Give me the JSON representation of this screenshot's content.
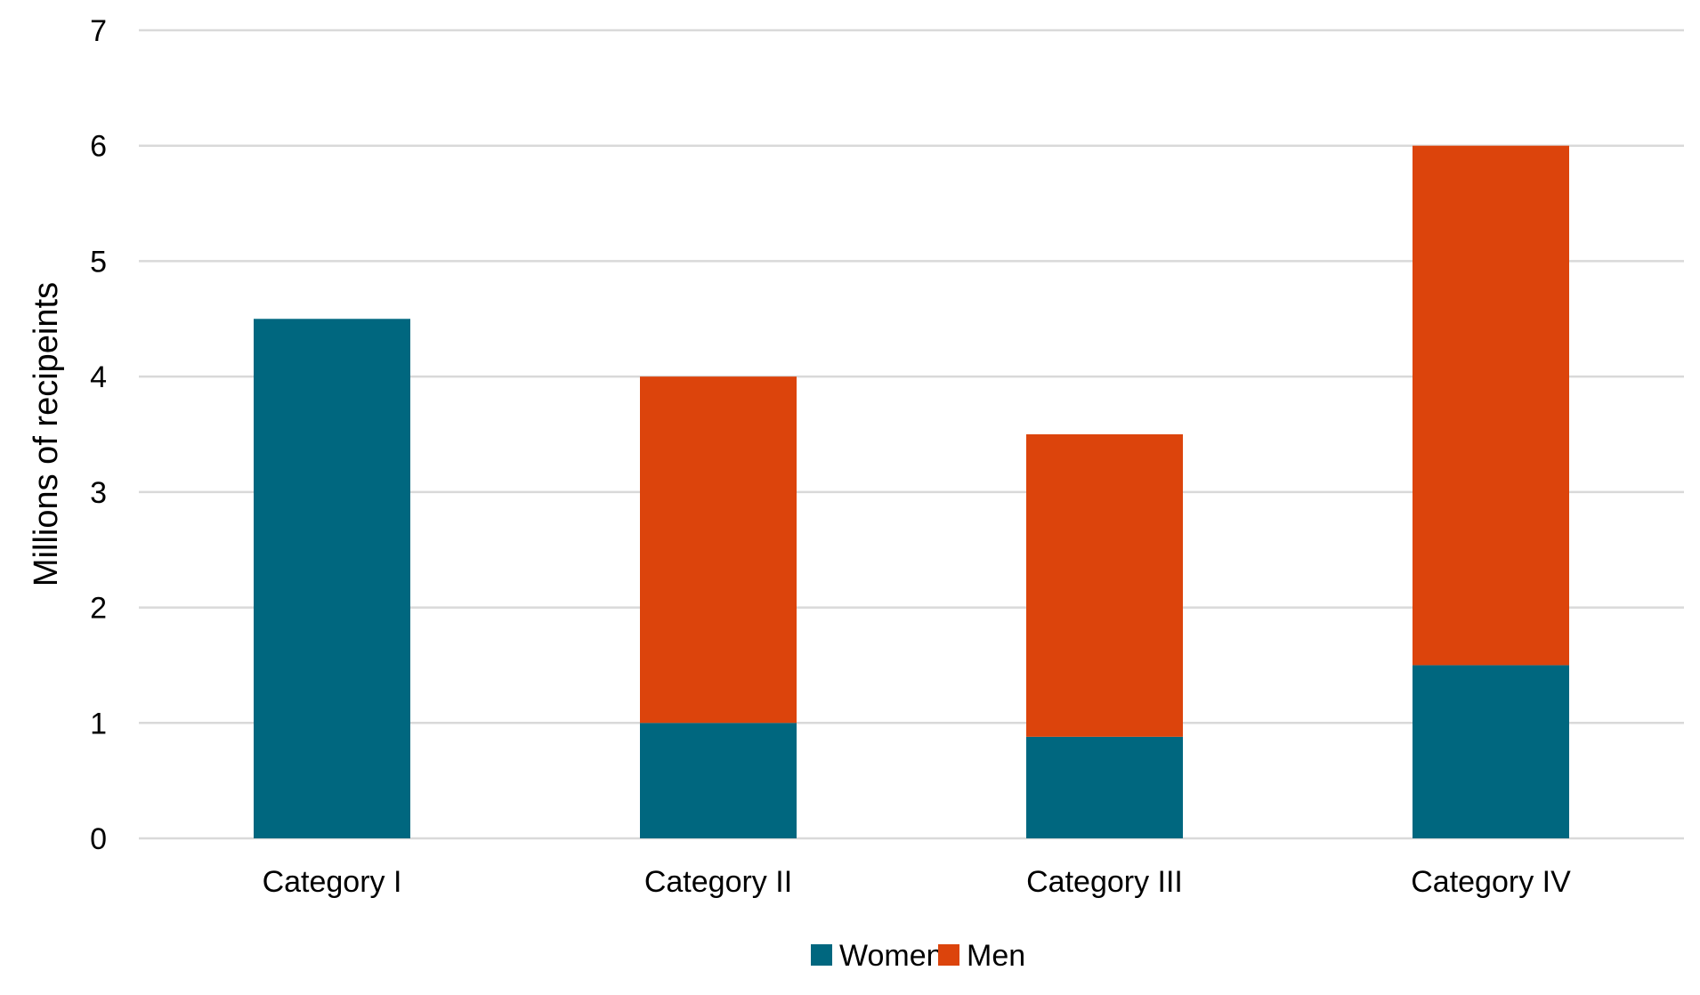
{
  "chart_data": {
    "type": "bar",
    "stacked": true,
    "categories": [
      "Category I",
      "Category II",
      "Category III",
      "Category IV"
    ],
    "series": [
      {
        "name": "Women",
        "color": "#00677f",
        "values": [
          4.5,
          1.0,
          0.88,
          1.5
        ]
      },
      {
        "name": "Men",
        "color": "#dc440c",
        "values": [
          0,
          3.0,
          2.62,
          4.5
        ]
      }
    ],
    "title": "",
    "xlabel": "",
    "ylabel": "Millions of recipeints",
    "ylim": [
      0,
      7
    ],
    "yticks": [
      0,
      1,
      2,
      3,
      4,
      5,
      6,
      7
    ],
    "grid": true,
    "gridColor": "#d9d9d9",
    "legend": "bottom"
  }
}
